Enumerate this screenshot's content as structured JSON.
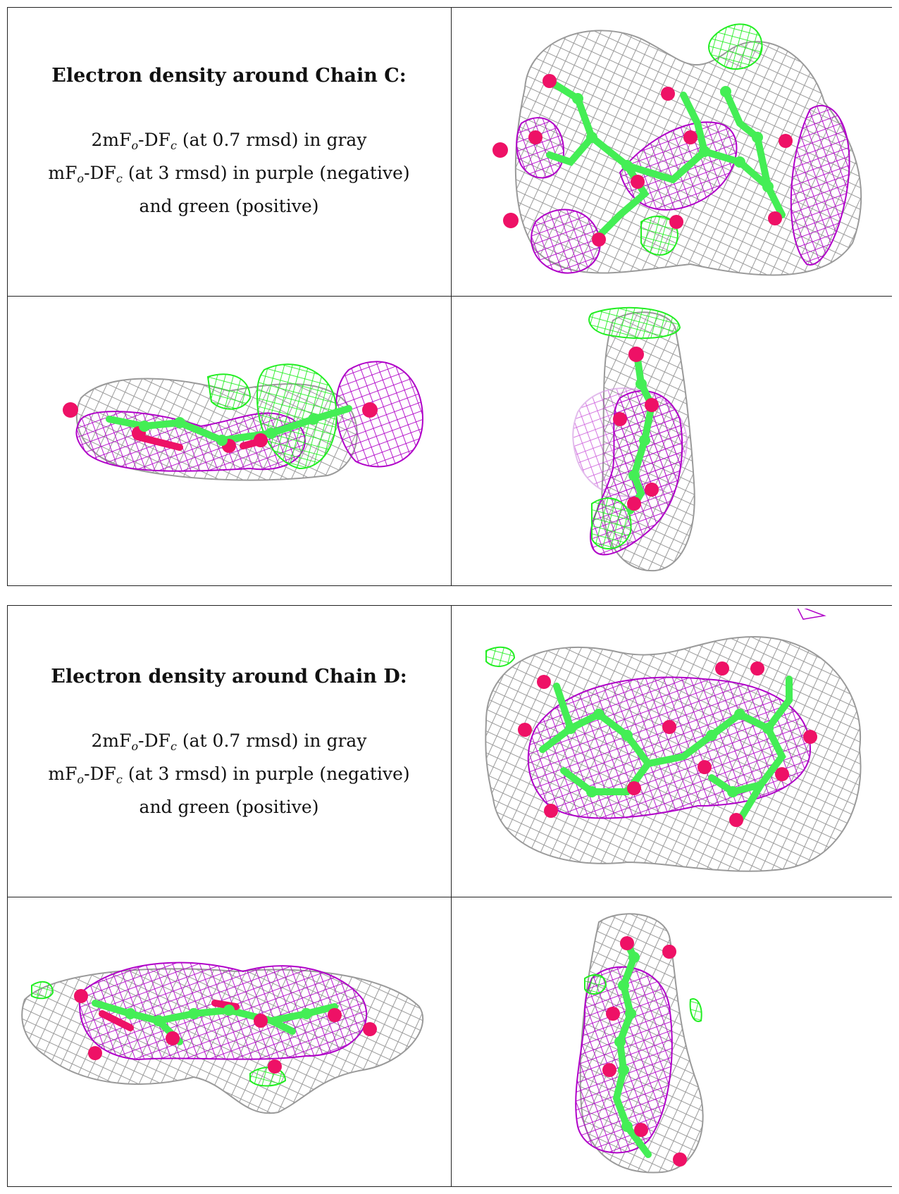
{
  "panels": [
    {
      "title": "Electron density around Chain C:",
      "caption": {
        "line1_pre": "2mF",
        "line1_sub1": "o",
        "line1_mid": "-DF",
        "line1_sub2": "c",
        "line1_post": " (at 0.7 rmsd) in gray",
        "line2_pre": "mF",
        "line2_sub1": "o",
        "line2_mid": "-DF",
        "line2_sub2": "c",
        "line2_post": " (at 3 rmsd) in purple (negative)",
        "line3": "and green (positive)"
      }
    },
    {
      "title": "Electron density around Chain D:",
      "caption": {
        "line1_pre": "2mF",
        "line1_sub1": "o",
        "line1_mid": "-DF",
        "line1_sub2": "c",
        "line1_post": " (at 0.7 rmsd) in gray",
        "line2_pre": "mF",
        "line2_sub1": "o",
        "line2_mid": "-DF",
        "line2_sub2": "c",
        "line2_post": " (at 3 rmsd) in purple (negative)",
        "line3": "and green (positive)"
      }
    }
  ],
  "colors": {
    "mesh_2fofc": "#9a9a9a",
    "mesh_negative": "#b000c8",
    "mesh_positive": "#22ee22",
    "carbon": "#44ee55",
    "oxygen": "#ee1166",
    "border": "#222222"
  }
}
